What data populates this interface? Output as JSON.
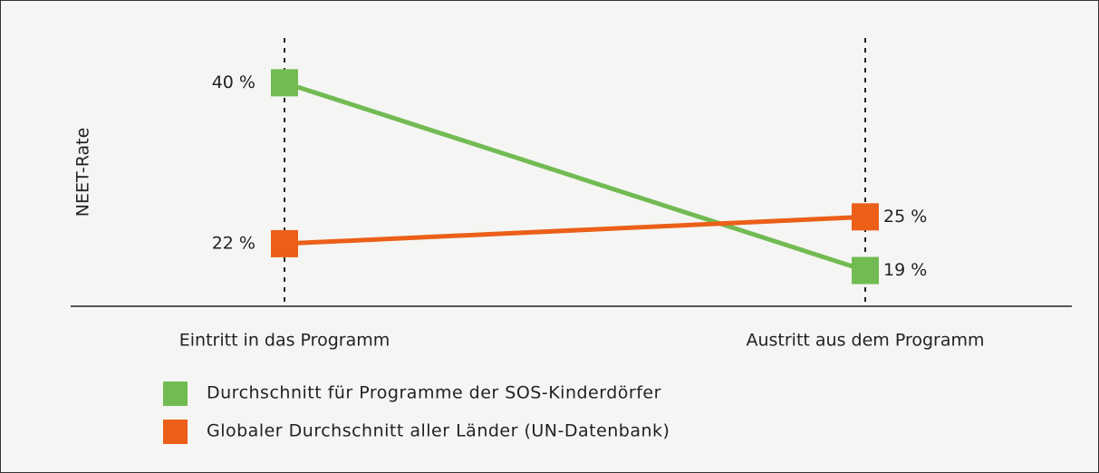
{
  "chart_data": {
    "type": "slope",
    "y_label": "NEET-Rate",
    "categories": [
      "Eintritt in das Programm",
      "Austritt aus dem Programm"
    ],
    "series": [
      {
        "name": "Durchschnitt für Programme der SOS-Kinderdörfer",
        "color": "#72bb53",
        "values": [
          40,
          19
        ],
        "value_labels": [
          "40 %",
          "19 %"
        ]
      },
      {
        "name": "Globaler Durchschnitt aller Länder (UN-Datenbank)",
        "color": "#eb5f18",
        "values": [
          22,
          25
        ],
        "value_labels": [
          "22 %",
          "25 %"
        ]
      }
    ],
    "ylim": [
      15,
      45
    ]
  }
}
